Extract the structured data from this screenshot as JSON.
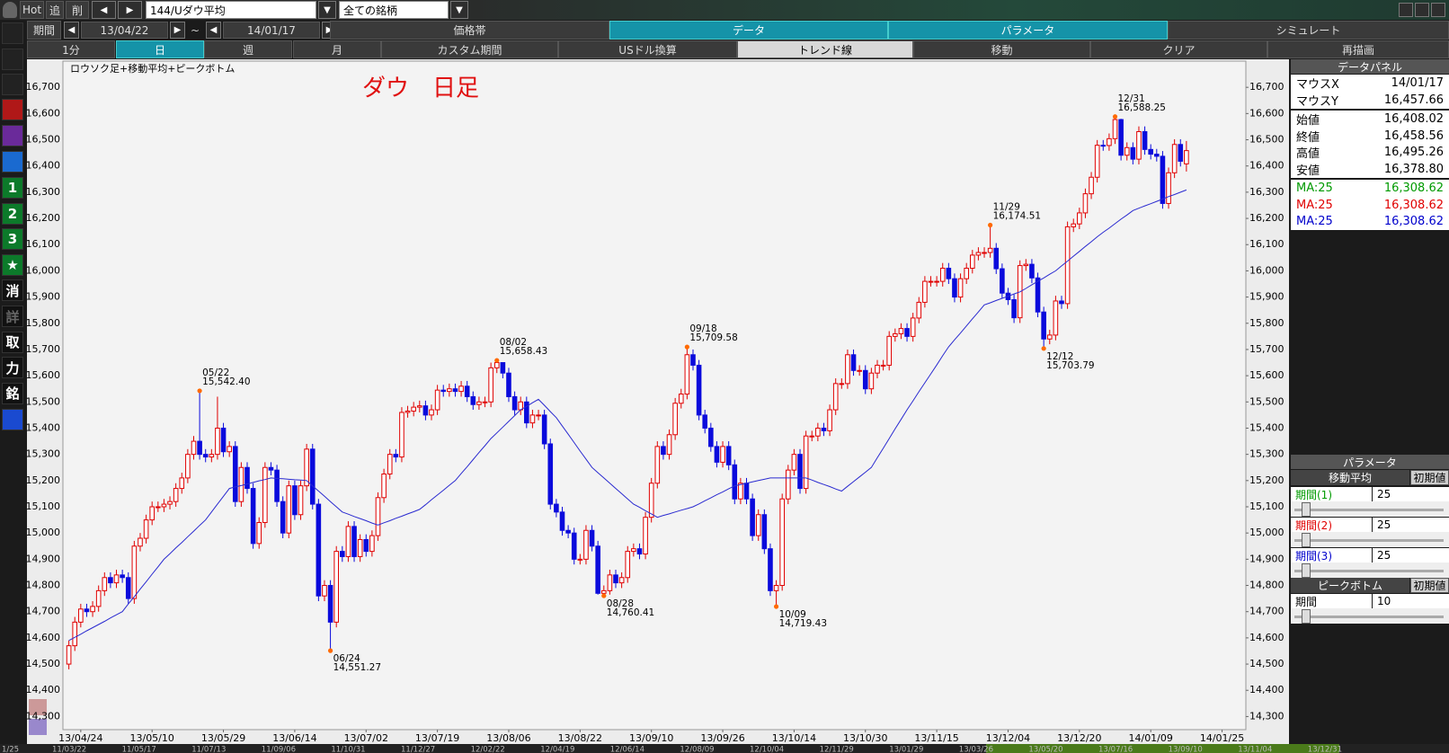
{
  "toolbar": {
    "row1": [
      "Hot",
      "追",
      "削",
      "144/Uダウ平均",
      "全ての銘柄"
    ],
    "period_label": "期間",
    "start": "13/04/22",
    "tilde": "~",
    "end": "14/01/17",
    "tabs": [
      "価格帯",
      "データ",
      "パラメータ",
      "シミュレート"
    ],
    "buttons": [
      "1分",
      "日",
      "週",
      "月",
      "カスタム期間",
      "USドル換算",
      "トレンド線",
      "移動",
      "クリア",
      "再描画"
    ]
  },
  "sidebar": [
    "1",
    "2",
    "3",
    "★",
    "消",
    "詳",
    "取",
    "力",
    "銘"
  ],
  "chart_data": {
    "type": "candlestick",
    "title": "ダウ　日足",
    "subtitle": "ロウソク足+移動平均+ピークボトム",
    "up_color": "#e00000",
    "down_color": "#0a0adc",
    "peak_color": "#ff6a00",
    "open": [
      14500,
      14570,
      14660,
      14710,
      14700,
      14720,
      14780,
      14830,
      14810,
      14840,
      14830,
      14750,
      14950,
      14980,
      15050,
      15100,
      15100,
      15110,
      15120,
      15170,
      15210,
      15300,
      15350,
      15300,
      15290,
      15300,
      15400,
      15310,
      15330,
      15120,
      15250,
      15170,
      14960,
      15040,
      15250,
      15240,
      15120,
      15000,
      15180,
      15070,
      15180,
      15320,
      15110,
      14760,
      14800,
      14660,
      14930,
      14910,
      15025,
      14910,
      14975,
      14930,
      14990,
      15135,
      15225,
      15300,
      15290,
      15460,
      15465,
      15480,
      15485,
      15450,
      15470,
      15545,
      15540,
      15550,
      15540,
      15560,
      15520,
      15490,
      15500,
      15500,
      15630,
      15650,
      15610,
      15520,
      15470,
      15500,
      15420,
      15450,
      15450,
      15340,
      15110,
      15080,
      15010,
      15000,
      14900,
      14900,
      15010,
      14950,
      14770,
      14780,
      14840,
      14810,
      14830,
      14930,
      14940,
      14920,
      15060,
      15190,
      15330,
      15300,
      15375,
      15495,
      15530,
      15680,
      15640,
      15450,
      15400,
      15330,
      15270,
      15330,
      15260,
      15130,
      15190,
      15130,
      14990,
      15070,
      14940,
      14780,
      14800,
      15130,
      15240,
      15300,
      15170,
      15370,
      15370,
      15400,
      15390,
      15470,
      15570,
      15570,
      15680,
      15620,
      15620,
      15550,
      15610,
      15640,
      15640,
      15750,
      15760,
      15780,
      15750,
      15820,
      15880,
      15960,
      15960,
      15960,
      16010,
      15970,
      15900,
      15970,
      16010,
      16060,
      16070,
      16070,
      16086,
      16008,
      15915,
      15890,
      15821,
      16020,
      16025,
      15973,
      15843,
      15740,
      15755,
      15885,
      15875,
      16168,
      16179,
      16221,
      16294,
      16357,
      16479,
      16478,
      16504,
      16577,
      16441,
      16470,
      16426,
      16531,
      16463,
      16445,
      16437,
      16257,
      16374,
      16482,
      16408.02
    ],
    "high": [
      14590,
      14680,
      14730,
      14730,
      14740,
      14800,
      14850,
      14850,
      14860,
      14860,
      14850,
      14970,
      15000,
      15070,
      15120,
      15120,
      15130,
      15140,
      15190,
      15230,
      15320,
      15370,
      15542.4,
      15320,
      15320,
      15520,
      15420,
      15350,
      15350,
      15270,
      15270,
      15190,
      15060,
      15270,
      15270,
      15260,
      15140,
      15200,
      15200,
      15200,
      15340,
      15340,
      15130,
      14820,
      14820,
      14950,
      14950,
      15045,
      15045,
      14995,
      14995,
      15010,
      15155,
      15245,
      15320,
      15320,
      15480,
      15485,
      15500,
      15505,
      15505,
      15490,
      15565,
      15565,
      15570,
      15570,
      15580,
      15580,
      15540,
      15520,
      15520,
      15650,
      15658.43,
      15650,
      15630,
      15540,
      15520,
      15520,
      15470,
      15470,
      15470,
      15360,
      15130,
      15100,
      15030,
      15020,
      14920,
      15030,
      15030,
      14970,
      14800,
      14860,
      14860,
      14850,
      14950,
      14960,
      14960,
      15080,
      15210,
      15350,
      15350,
      15395,
      15515,
      15550,
      15709.58,
      15700,
      15660,
      15470,
      15420,
      15350,
      15350,
      15350,
      15280,
      15210,
      15210,
      15150,
      15090,
      15090,
      14960,
      14820,
      15150,
      15260,
      15320,
      15320,
      15390,
      15390,
      15420,
      15420,
      15490,
      15590,
      15590,
      15700,
      15700,
      15640,
      15640,
      15630,
      15660,
      15660,
      15770,
      15780,
      15800,
      15800,
      15840,
      15900,
      15980,
      15980,
      15980,
      16030,
      16030,
      15990,
      15990,
      16030,
      16080,
      16090,
      16090,
      16174.51,
      16106,
      16028,
      15935,
      15910,
      16040,
      16045,
      16045,
      15993,
      15863,
      15775,
      15905,
      15905,
      16188,
      16199,
      16241,
      16314,
      16377,
      16499,
      16499,
      16524,
      16588.25,
      16580,
      16490,
      16490,
      16551,
      16551,
      16483,
      16465,
      16457,
      16394,
      16502,
      16502,
      16495.26
    ],
    "low": [
      14480,
      14550,
      14640,
      14680,
      14680,
      14700,
      14760,
      14790,
      14790,
      14810,
      14730,
      14730,
      14930,
      14960,
      15030,
      15080,
      15080,
      15090,
      15100,
      15150,
      15190,
      15280,
      15280,
      15270,
      15270,
      15280,
      15290,
      15290,
      15100,
      15100,
      15150,
      14940,
      14940,
      15020,
      15220,
      15100,
      14980,
      14980,
      15050,
      15050,
      15160,
      15090,
      14740,
      14740,
      14551.27,
      14640,
      14890,
      14890,
      14890,
      14890,
      14910,
      14910,
      14970,
      15115,
      15205,
      15270,
      15270,
      15440,
      15445,
      15460,
      15430,
      15430,
      15450,
      15520,
      15520,
      15520,
      15520,
      15500,
      15470,
      15470,
      15480,
      15480,
      15610,
      15590,
      15500,
      15450,
      15450,
      15400,
      15400,
      15430,
      15320,
      15090,
      15060,
      14990,
      14980,
      14880,
      14880,
      14880,
      14930,
      14765,
      14760.41,
      14765,
      14790,
      14790,
      14810,
      14910,
      14900,
      14900,
      15040,
      15170,
      15280,
      15280,
      15355,
      15475,
      15510,
      15620,
      15430,
      15380,
      15310,
      15250,
      15250,
      15240,
      15110,
      15110,
      15110,
      14970,
      14970,
      14920,
      14760,
      14719.43,
      14780,
      15110,
      15220,
      15150,
      15150,
      15350,
      15350,
      15370,
      15370,
      15450,
      15550,
      15550,
      15600,
      15600,
      15530,
      15530,
      15590,
      15620,
      15620,
      15730,
      15740,
      15730,
      15730,
      15800,
      15860,
      15940,
      15940,
      15940,
      15950,
      15880,
      15880,
      15950,
      15990,
      16040,
      16050,
      16050,
      15988,
      15895,
      15870,
      15801,
      15801,
      16000,
      15953,
      15823,
      15703.79,
      15720,
      15735,
      15855,
      15855,
      16148,
      16159,
      16201,
      16274,
      16337,
      16458,
      16458,
      16484,
      16421,
      16421,
      16406,
      16406,
      16443,
      16425,
      16417,
      16237,
      16237,
      16354,
      16398,
      16378.8
    ],
    "close": [
      14570,
      14660,
      14710,
      14700,
      14720,
      14780,
      14830,
      14810,
      14840,
      14830,
      14750,
      14950,
      14980,
      15050,
      15100,
      15100,
      15110,
      15120,
      15170,
      15210,
      15300,
      15350,
      15300,
      15290,
      15300,
      15400,
      15310,
      15330,
      15120,
      15250,
      15170,
      14960,
      15040,
      15250,
      15240,
      15120,
      15000,
      15180,
      15070,
      15180,
      15320,
      15110,
      14760,
      14800,
      14660,
      14930,
      14910,
      15025,
      14910,
      14975,
      14930,
      14990,
      15135,
      15225,
      15300,
      15290,
      15460,
      15465,
      15480,
      15485,
      15450,
      15470,
      15545,
      15540,
      15550,
      15540,
      15560,
      15520,
      15490,
      15500,
      15500,
      15630,
      15650,
      15610,
      15520,
      15470,
      15500,
      15420,
      15450,
      15450,
      15340,
      15110,
      15080,
      15010,
      15000,
      14900,
      14900,
      15010,
      14950,
      14770,
      14780,
      14840,
      14810,
      14830,
      14930,
      14940,
      14920,
      15060,
      15190,
      15330,
      15300,
      15375,
      15495,
      15530,
      15680,
      15640,
      15450,
      15400,
      15330,
      15270,
      15330,
      15260,
      15130,
      15190,
      15130,
      14990,
      15070,
      14940,
      14780,
      14800,
      15130,
      15240,
      15300,
      15170,
      15370,
      15370,
      15400,
      15390,
      15470,
      15570,
      15570,
      15680,
      15620,
      15620,
      15550,
      15610,
      15640,
      15640,
      15750,
      15760,
      15780,
      15750,
      15820,
      15880,
      15960,
      15960,
      15960,
      16010,
      15970,
      15900,
      15970,
      16010,
      16060,
      16070,
      16070,
      16086,
      16008,
      15915,
      15890,
      15821,
      16020,
      16025,
      15973,
      15843,
      15740,
      15755,
      15885,
      15875,
      16168,
      16179,
      16221,
      16294,
      16357,
      16479,
      16478,
      16504,
      16577,
      16441,
      16470,
      16426,
      16531,
      16463,
      16445,
      16437,
      16257,
      16374,
      16482,
      16418,
      16458.56
    ],
    "series": [
      {
        "color": "#2a2ad0",
        "values": [
          14590,
          14602,
          14614,
          14627,
          14639,
          14651,
          14663,
          14676,
          14688,
          14700,
          14729,
          14757,
          14786,
          14814,
          14843,
          14871,
          14900,
          14921,
          14943,
          14964,
          14986,
          15007,
          15029,
          15050,
          15080,
          15110,
          15140,
          15170,
          15176,
          15181,
          15187,
          15193,
          15199,
          15204,
          15210,
          15208,
          15207,
          15205,
          15203,
          15202,
          15200,
          15180,
          15160,
          15140,
          15120,
          15100,
          15080,
          15072,
          15063,
          15055,
          15047,
          15038,
          15030,
          15039,
          15047,
          15056,
          15064,
          15073,
          15081,
          15090,
          15108,
          15127,
          15145,
          15163,
          15182,
          15200,
          15227,
          15253,
          15280,
          15307,
          15333,
          15360,
          15382,
          15404,
          15426,
          15448,
          15470,
          15483,
          15497,
          15510,
          15487,
          15463,
          15440,
          15408,
          15377,
          15345,
          15313,
          15282,
          15250,
          15230,
          15210,
          15190,
          15170,
          15150,
          15130,
          15110,
          15098,
          15085,
          15073,
          15060,
          15067,
          15073,
          15080,
          15087,
          15093,
          15100,
          15111,
          15123,
          15134,
          15146,
          15157,
          15169,
          15180,
          15185,
          15190,
          15195,
          15200,
          15205,
          15210,
          15210,
          15210,
          15210,
          15210,
          15210,
          15210,
          15202,
          15193,
          15185,
          15177,
          15168,
          15160,
          15178,
          15196,
          15214,
          15232,
          15250,
          15287,
          15323,
          15360,
          15397,
          15433,
          15470,
          15504,
          15539,
          15573,
          15607,
          15641,
          15676,
          15710,
          15737,
          15763,
          15790,
          15817,
          15843,
          15870,
          15878,
          15887,
          15895,
          15903,
          15912,
          15920,
          15933,
          15947,
          15960,
          15973,
          15987,
          16000,
          16019,
          16037,
          16056,
          16074,
          16093,
          16111,
          16130,
          16147,
          16163,
          16180,
          16197,
          16213,
          16230,
          16239,
          16248,
          16256,
          16265,
          16274,
          16283,
          16291,
          16300,
          16308.62
        ]
      }
    ],
    "xlim": [
      -1,
      198
    ],
    "xticks": [
      {
        "value": 2,
        "label": "13/04/24"
      },
      {
        "value": 14,
        "label": "13/05/10"
      },
      {
        "value": 26,
        "label": "13/05/29"
      },
      {
        "value": 38,
        "label": "13/06/14"
      },
      {
        "value": 50,
        "label": "13/07/02"
      },
      {
        "value": 62,
        "label": "13/07/19"
      },
      {
        "value": 74,
        "label": "13/08/06"
      },
      {
        "value": 86,
        "label": "13/08/22"
      },
      {
        "value": 98,
        "label": "13/09/10"
      },
      {
        "value": 110,
        "label": "13/09/26"
      },
      {
        "value": 122,
        "label": "13/10/14"
      },
      {
        "value": 134,
        "label": "13/10/30"
      },
      {
        "value": 146,
        "label": "13/11/15"
      },
      {
        "value": 158,
        "label": "13/12/04"
      },
      {
        "value": 170,
        "label": "13/12/20"
      },
      {
        "value": 182,
        "label": "14/01/09"
      },
      {
        "value": 194,
        "label": "14/01/25"
      }
    ],
    "ylim": [
      14250,
      16800
    ],
    "yticks": [
      {
        "value": 14300,
        "label": "14,300"
      },
      {
        "value": 14400,
        "label": "14,400"
      },
      {
        "value": 14500,
        "label": "14,500"
      },
      {
        "value": 14600,
        "label": "14,600"
      },
      {
        "value": 14700,
        "label": "14,700"
      },
      {
        "value": 14800,
        "label": "14,800"
      },
      {
        "value": 14900,
        "label": "14,900"
      },
      {
        "value": 15000,
        "label": "15,000"
      },
      {
        "value": 15100,
        "label": "15,100"
      },
      {
        "value": 15200,
        "label": "15,200"
      },
      {
        "value": 15300,
        "label": "15,300"
      },
      {
        "value": 15400,
        "label": "15,400"
      },
      {
        "value": 15500,
        "label": "15,500"
      },
      {
        "value": 15600,
        "label": "15,600"
      },
      {
        "value": 15700,
        "label": "15,700"
      },
      {
        "value": 15800,
        "label": "15,800"
      },
      {
        "value": 15900,
        "label": "15,900"
      },
      {
        "value": 16000,
        "label": "16,000"
      },
      {
        "value": 16100,
        "label": "16,100"
      },
      {
        "value": 16200,
        "label": "16,200"
      },
      {
        "value": 16300,
        "label": "16,300"
      },
      {
        "value": 16400,
        "label": "16,400"
      },
      {
        "value": 16500,
        "label": "16,500"
      },
      {
        "value": 16600,
        "label": "16,600"
      },
      {
        "value": 16700,
        "label": "16,700"
      }
    ],
    "peaks": [
      {
        "date": "05/22",
        "label": "15,542.40",
        "value": 15542.4
      },
      {
        "date": "06/24",
        "label": "14,551.27",
        "value": 14551.27
      },
      {
        "date": "08/02",
        "label": "15,658.43",
        "value": 15658.43
      },
      {
        "date": "08/28",
        "label": "14,760.41",
        "value": 14760.41
      },
      {
        "date": "09/18",
        "label": "15,709.58",
        "value": 15709.58
      },
      {
        "date": "10/09",
        "label": "14,719.43",
        "value": 14719.43
      },
      {
        "date": "11/29",
        "label": "16,174.51",
        "value": 16174.51
      },
      {
        "date": "12/12",
        "label": "15,703.79",
        "value": 15703.79
      },
      {
        "date": "12/31",
        "label": "16,588.25",
        "value": 16588.25
      }
    ]
  },
  "data_panel": {
    "title": "データパネル",
    "rows": [
      [
        "マウスX",
        "14/01/17"
      ],
      [
        "マウスY",
        "16,457.66"
      ],
      [
        "始値",
        "16,408.02"
      ],
      [
        "終値",
        "16,458.56"
      ],
      [
        "高値",
        "16,495.26"
      ],
      [
        "安値",
        "16,378.80"
      ],
      [
        "MA:25",
        "16,308.62"
      ],
      [
        "MA:25",
        "16,308.62"
      ],
      [
        "MA:25",
        "16,308.62"
      ]
    ]
  },
  "parameters": {
    "title": "パラメータ",
    "ma_section": "移動平均",
    "ma_reset": "初期値",
    "ma_periods": [
      [
        "期間(1)",
        25
      ],
      [
        "期間(2)",
        25
      ],
      [
        "期間(3)",
        25
      ]
    ],
    "peak_section": "ピークボトム",
    "peak_reset": "初期値",
    "peak_period": [
      "期間",
      10
    ]
  },
  "navigator": {
    "dates": [
      "1/25",
      "11/03/22",
      "11/05/17",
      "11/07/13",
      "11/09/06",
      "11/10/31",
      "11/12/27",
      "12/02/22",
      "12/04/19",
      "12/06/14",
      "12/08/09",
      "12/10/04",
      "12/11/29",
      "13/01/29",
      "13/03/26",
      "13/05/20",
      "13/07/16",
      "13/09/10",
      "13/11/04",
      "13/12/31"
    ]
  }
}
